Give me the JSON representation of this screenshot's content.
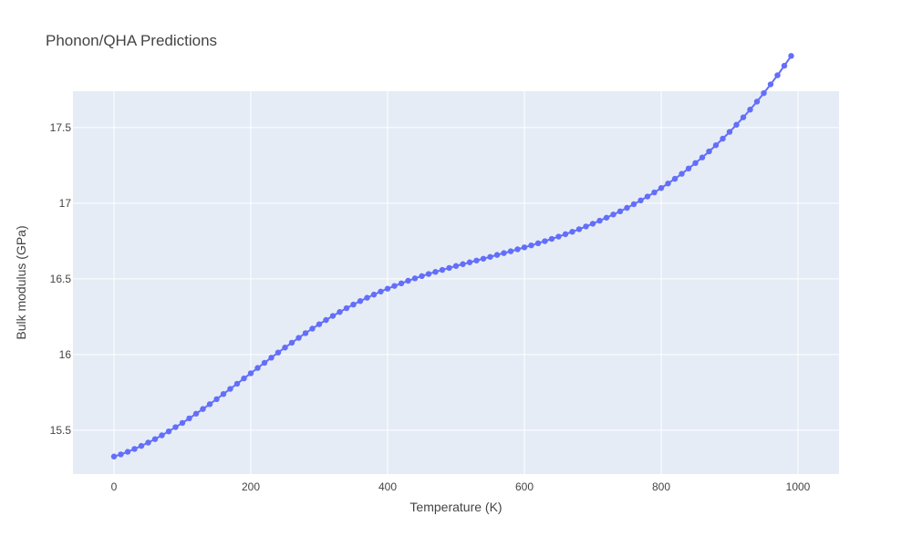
{
  "chart_data": {
    "type": "line",
    "title": "Phonon/QHA Predictions",
    "xlabel": "Temperature (K)",
    "ylabel": "Bulk modulus (GPa)",
    "xlim": [
      -60,
      1060
    ],
    "ylim": [
      15.21,
      17.74
    ],
    "xticks": [
      0,
      200,
      400,
      600,
      800,
      1000
    ],
    "xtick_labels": [
      "0",
      "200",
      "400",
      "600",
      "800",
      "1000"
    ],
    "yticks": [
      15.5,
      16,
      16.5,
      17,
      17.5
    ],
    "ytick_labels": [
      "15.5",
      "16",
      "16.5",
      "17",
      "17.5"
    ],
    "grid": true,
    "legend": "none",
    "colors": {
      "series": "#636efa",
      "plot_bg": "#e5ecf6",
      "grid": "#ffffff",
      "text": "#444444"
    },
    "series": [
      {
        "x": [
          0,
          10,
          20,
          30,
          40,
          50,
          60,
          70,
          80,
          90,
          100,
          110,
          120,
          130,
          140,
          150,
          160,
          170,
          180,
          190,
          200,
          210,
          220,
          230,
          240,
          250,
          260,
          270,
          280,
          290,
          300,
          310,
          320,
          330,
          340,
          350,
          360,
          370,
          380,
          390,
          400,
          410,
          420,
          430,
          440,
          450,
          460,
          470,
          480,
          490,
          500,
          510,
          520,
          530,
          540,
          550,
          560,
          570,
          580,
          590,
          600,
          610,
          620,
          630,
          640,
          650,
          660,
          670,
          680,
          690,
          700,
          710,
          720,
          730,
          740,
          750,
          760,
          770,
          780,
          790,
          800,
          810,
          820,
          830,
          840,
          850,
          860,
          870,
          880,
          890,
          900,
          910,
          920,
          930,
          940,
          950,
          960,
          970,
          980,
          990
        ],
        "y": [
          15.326,
          15.34,
          15.357,
          15.376,
          15.396,
          15.418,
          15.441,
          15.466,
          15.492,
          15.52,
          15.548,
          15.578,
          15.609,
          15.64,
          15.672,
          15.705,
          15.739,
          15.773,
          15.807,
          15.842,
          15.876,
          15.911,
          15.945,
          15.979,
          16.013,
          16.046,
          16.078,
          16.11,
          16.141,
          16.171,
          16.2,
          16.228,
          16.255,
          16.281,
          16.306,
          16.33,
          16.353,
          16.375,
          16.396,
          16.416,
          16.435,
          16.453,
          16.47,
          16.487,
          16.503,
          16.518,
          16.532,
          16.546,
          16.559,
          16.572,
          16.585,
          16.597,
          16.609,
          16.621,
          16.633,
          16.645,
          16.658,
          16.67,
          16.682,
          16.695,
          16.708,
          16.721,
          16.735,
          16.749,
          16.764,
          16.779,
          16.795,
          16.811,
          16.828,
          16.846,
          16.864,
          16.884,
          16.904,
          16.925,
          16.946,
          16.969,
          16.993,
          17.018,
          17.044,
          17.071,
          17.1,
          17.13,
          17.161,
          17.194,
          17.229,
          17.265,
          17.302,
          17.342,
          17.383,
          17.426,
          17.471,
          17.518,
          17.567,
          17.618,
          17.671,
          17.727,
          17.785,
          17.845,
          17.908,
          17.973
        ]
      }
    ]
  }
}
